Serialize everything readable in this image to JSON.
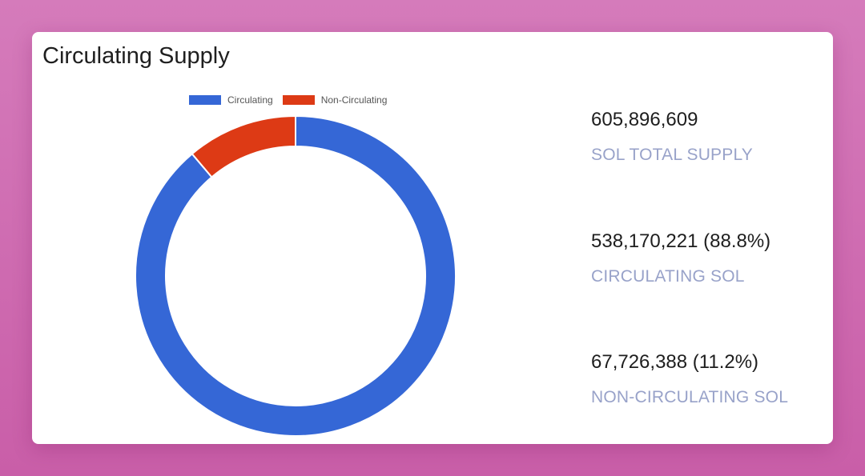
{
  "card": {
    "title": "Circulating Supply"
  },
  "stats": [
    {
      "value": "605,896,609",
      "label": "SOL TOTAL SUPPLY"
    },
    {
      "value": "538,170,221 (88.8%)",
      "label": "CIRCULATING SOL"
    },
    {
      "value": "67,726,388 (11.2%)",
      "label": "NON-CIRCULATING SOL"
    }
  ],
  "chart_data": {
    "type": "pie",
    "variant": "doughnut",
    "categories": [
      "Circulating",
      "Non-Circulating"
    ],
    "values": [
      538170221,
      67726388
    ],
    "colors": [
      "#3567d6",
      "#dd3a15"
    ],
    "legend_position": "top"
  }
}
